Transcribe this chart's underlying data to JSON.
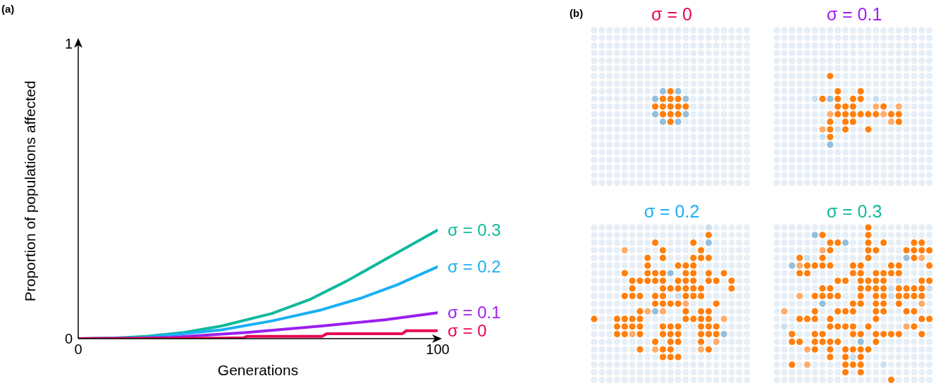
{
  "chart_data": [
    {
      "type": "line",
      "title": "(a)",
      "xlabel": "Generations",
      "ylabel": "Proportion of populations affected",
      "xlim": [
        0,
        100
      ],
      "ylim": [
        0,
        1
      ],
      "xticks": [
        0,
        100
      ],
      "yticks": [
        0,
        1
      ],
      "marker": "none",
      "line_style": "solid",
      "series": [
        {
          "name": "σ = 0.3",
          "color": "#10b99a",
          "x": [
            0,
            10,
            18.9,
            29.4,
            39.9,
            53.8,
            64.3,
            74.8,
            85.3,
            100
          ],
          "values": [
            0,
            0.002,
            0.008,
            0.021,
            0.043,
            0.085,
            0.132,
            0.196,
            0.268,
            0.368
          ]
        },
        {
          "name": "σ = 0.2",
          "color": "#1ab0f5",
          "x": [
            0,
            10,
            18.9,
            39.9,
            53.8,
            67.8,
            78.3,
            88.8,
            100
          ],
          "values": [
            0,
            0.001,
            0.004,
            0.03,
            0.06,
            0.098,
            0.136,
            0.183,
            0.244
          ]
        },
        {
          "name": "σ = 0.1",
          "color": "#9b1ff0",
          "x": [
            0,
            15,
            25.9,
            46.9,
            67.8,
            85.3,
            100
          ],
          "values": [
            0,
            0.001,
            0.004,
            0.021,
            0.043,
            0.064,
            0.088
          ]
        },
        {
          "name": "σ = 0",
          "color": "#e8064f",
          "x": [
            0,
            40,
            46,
            47,
            67.8,
            69.2,
            90.2,
            91.3,
            100
          ],
          "values": [
            0,
            0.002,
            0.003,
            0.008,
            0.008,
            0.017,
            0.017,
            0.027,
            0.027
          ]
        }
      ]
    },
    {
      "type": "other",
      "title": "(b)",
      "annotations": [
        "σ = 0",
        "σ = 0.1",
        "σ = 0.2",
        "σ = 0.3"
      ]
    }
  ]
}
